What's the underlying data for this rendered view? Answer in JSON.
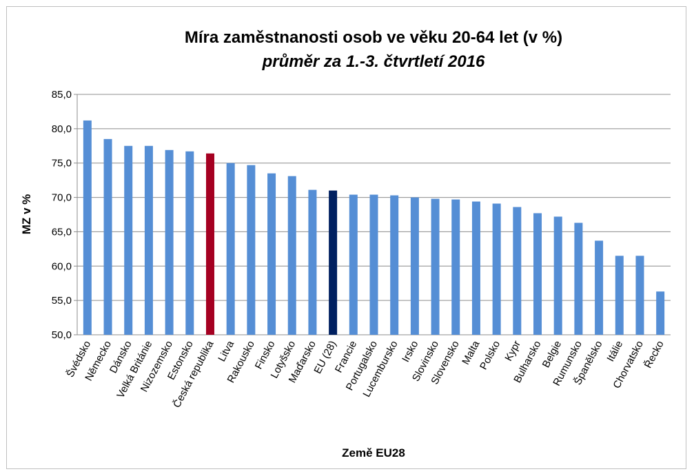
{
  "chart_data": {
    "type": "bar",
    "title": "Míra zaměstnanosti osob ve věku 20-64 let (v %)",
    "subtitle": "průměr za 1.-3. čtvrtletí 2016",
    "y_label": "MZ v %",
    "x_label": "Země EU28",
    "categories": [
      "Švédsko",
      "Německo",
      "Dánsko",
      "Velká Británie",
      "Nizozemsko",
      "Estonsko",
      "Česká republika",
      "Litva",
      "Rakousko",
      "Finsko",
      "Lotyšsko",
      "Maďarsko",
      "EU (28)",
      "Francie",
      "Portugalsko",
      "Lucembursko",
      "Irsko",
      "Slovinsko",
      "Slovensko",
      "Malta",
      "Polsko",
      "Kypr",
      "Bulharsko",
      "Belgie",
      "Rumunsko",
      "Španělsko",
      "Itálie",
      "Chorvatsko",
      "Řecko"
    ],
    "values": [
      81.2,
      78.5,
      77.5,
      77.5,
      76.9,
      76.7,
      76.4,
      75.0,
      74.7,
      73.5,
      73.1,
      71.1,
      71.0,
      70.4,
      70.4,
      70.3,
      70.0,
      69.8,
      69.7,
      69.4,
      69.1,
      68.6,
      67.7,
      67.2,
      66.3,
      63.7,
      61.5,
      61.5,
      56.3
    ],
    "colors": [
      "#558ed5",
      "#558ed5",
      "#558ed5",
      "#558ed5",
      "#558ed5",
      "#558ed5",
      "#a50021",
      "#558ed5",
      "#558ed5",
      "#558ed5",
      "#558ed5",
      "#558ed5",
      "#002060",
      "#558ed5",
      "#558ed5",
      "#558ed5",
      "#558ed5",
      "#558ed5",
      "#558ed5",
      "#558ed5",
      "#558ed5",
      "#558ed5",
      "#558ed5",
      "#558ed5",
      "#558ed5",
      "#558ed5",
      "#558ed5",
      "#558ed5",
      "#558ed5"
    ],
    "ylim": [
      50,
      85
    ],
    "yticks": [
      {
        "value": 50,
        "label": "50,0"
      },
      {
        "value": 55,
        "label": "55,0"
      },
      {
        "value": 60,
        "label": "60,0"
      },
      {
        "value": 65,
        "label": "65,0"
      },
      {
        "value": 70,
        "label": "70,0"
      },
      {
        "value": 75,
        "label": "75,0"
      },
      {
        "value": 80,
        "label": "80,0"
      },
      {
        "value": 85,
        "label": "85,0"
      }
    ],
    "grid": true
  }
}
